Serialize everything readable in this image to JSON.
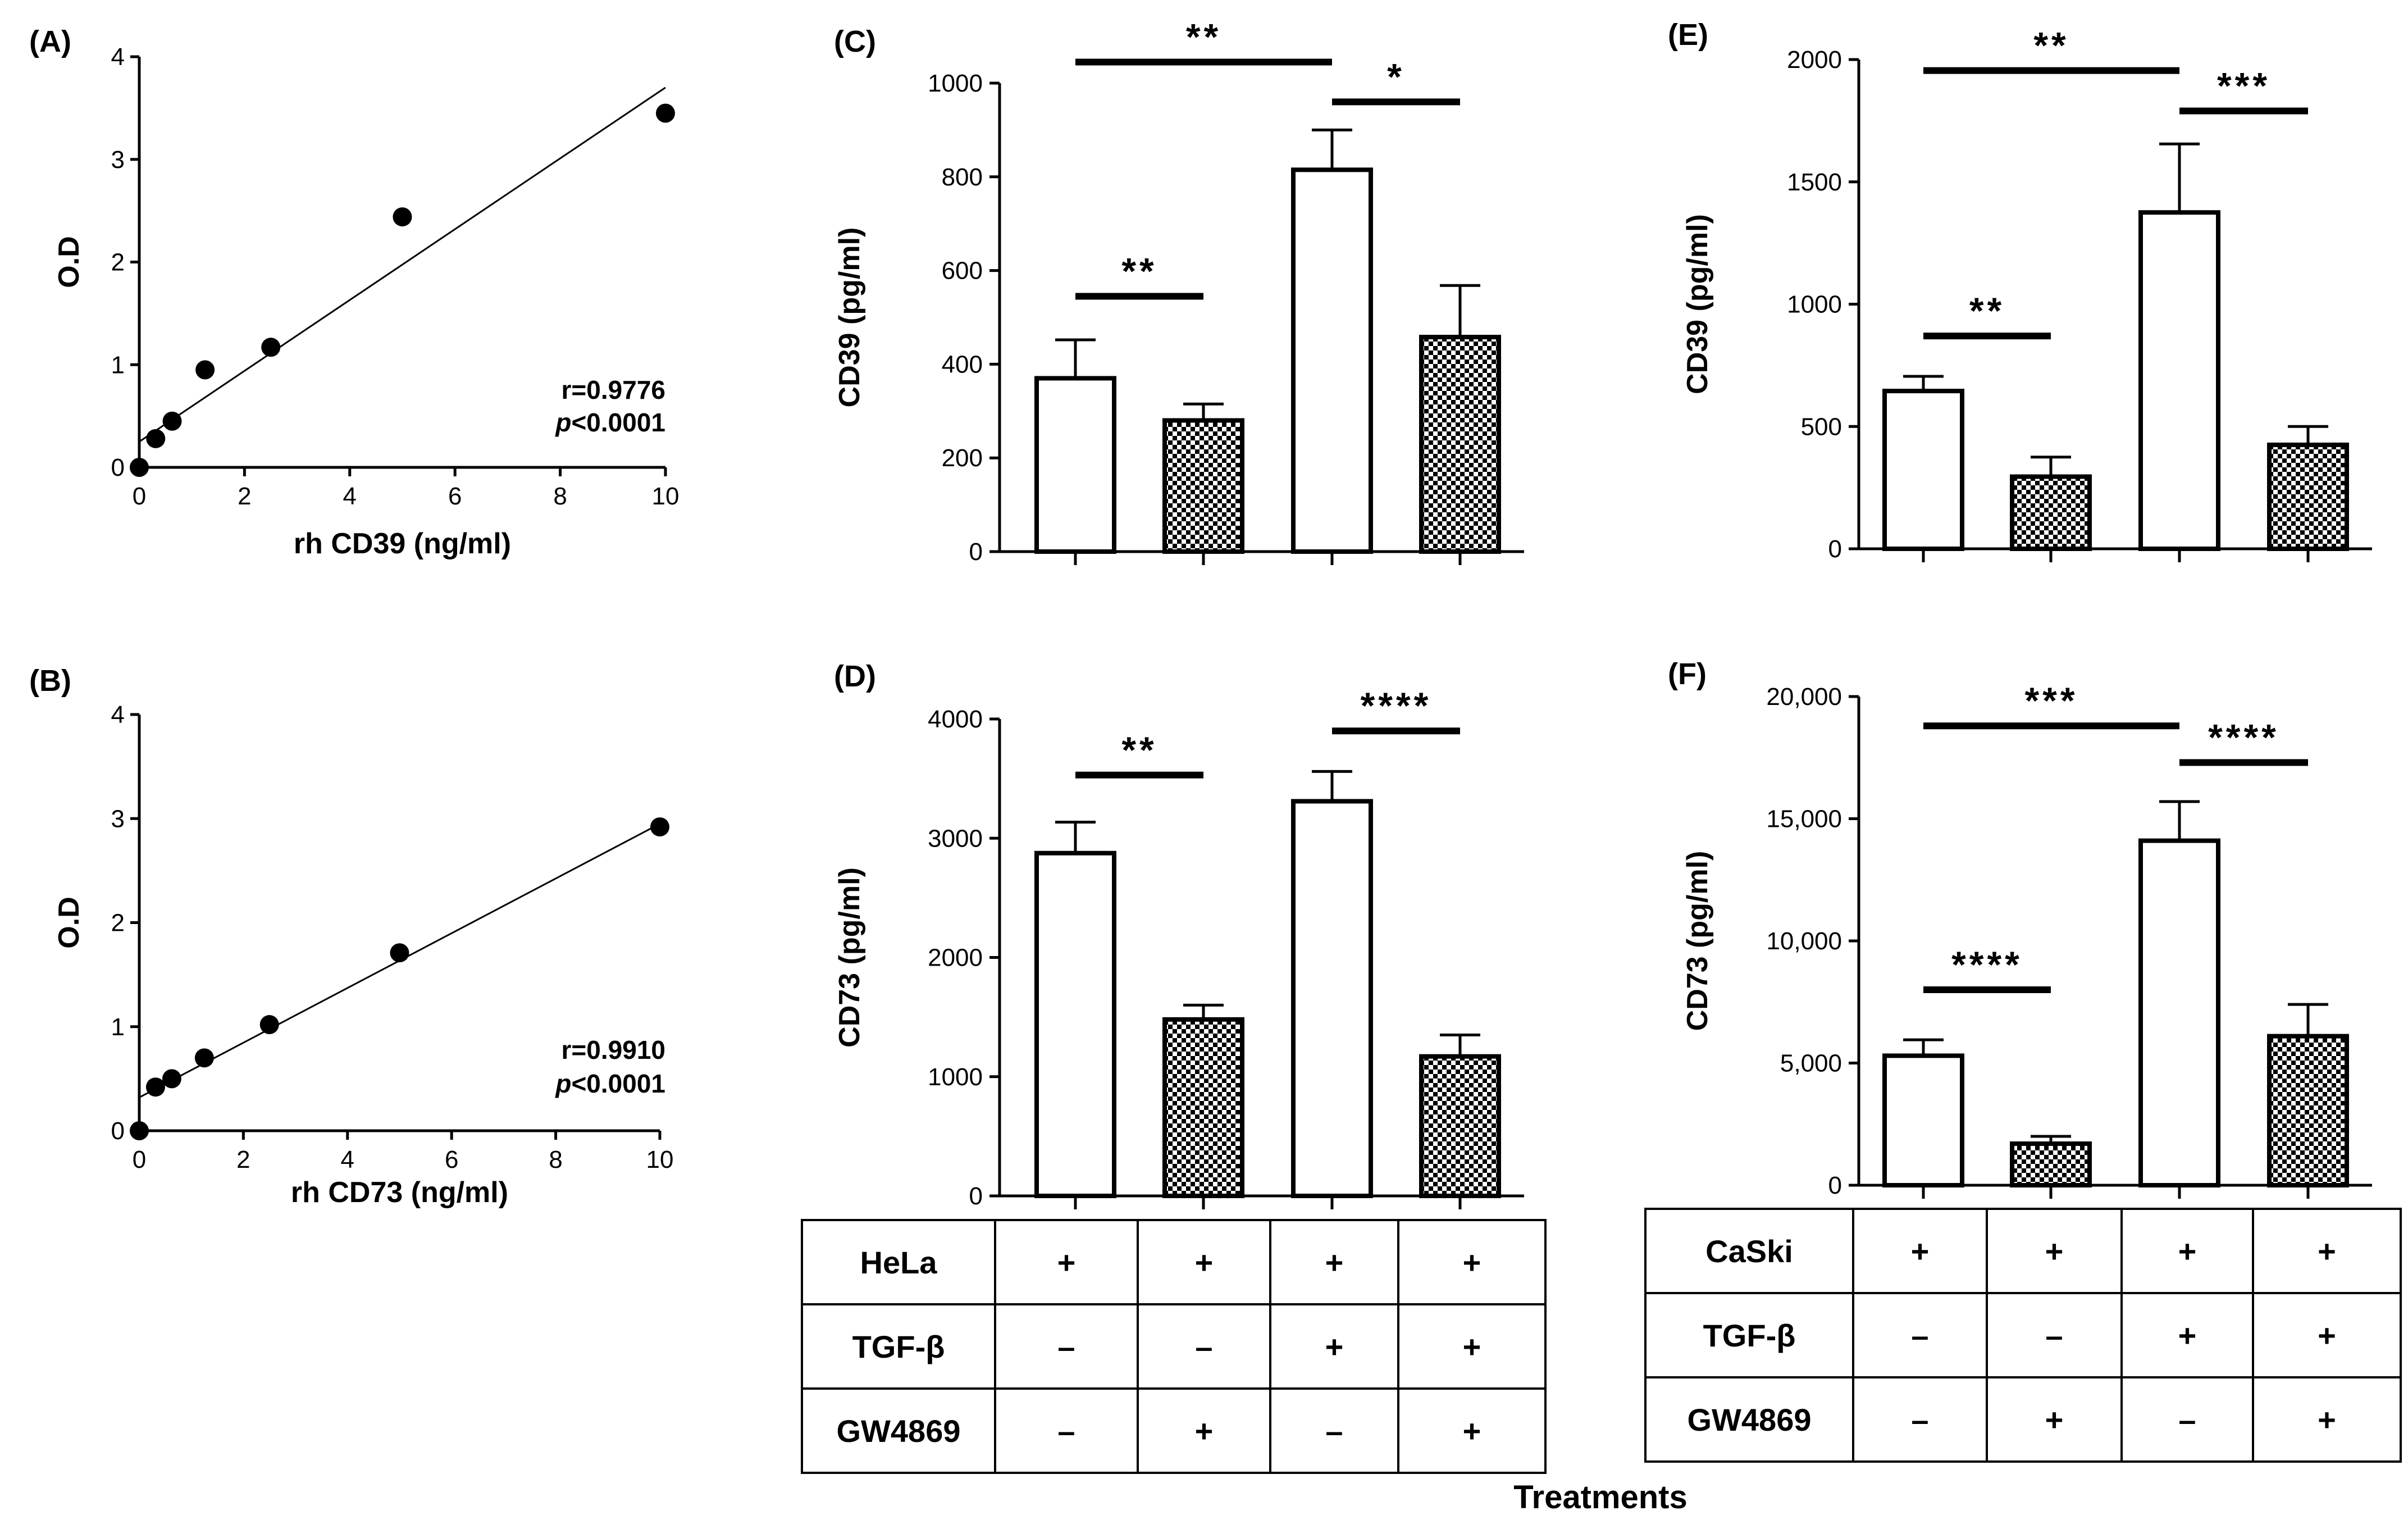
{
  "figure": {
    "xlabel_shared": "Treatments"
  },
  "chart_data": [
    {
      "id": "A",
      "type": "scatter",
      "label": "(A)",
      "xlabel": "rh CD39 (ng/ml)",
      "ylabel": "O.D",
      "xlim": [
        0,
        10
      ],
      "ylim": [
        0,
        4
      ],
      "xticks": [
        "0",
        "2",
        "4",
        "6",
        "8",
        "10"
      ],
      "yticks": [
        "0",
        "1",
        "2",
        "3",
        "4"
      ],
      "x": [
        0,
        0.3125,
        0.625,
        1.25,
        2.5,
        5,
        10
      ],
      "y": [
        0,
        0.28,
        0.45,
        0.95,
        1.17,
        2.44,
        3.45
      ],
      "fit_line": {
        "x": [
          0,
          10
        ],
        "y": [
          0.25,
          3.7
        ]
      },
      "stat_r": "r=0.9776",
      "stat_p_label": "p",
      "stat_p_rest": "<0.0001"
    },
    {
      "id": "B",
      "type": "scatter",
      "label": "(B)",
      "xlabel": "rh CD73 (ng/ml)",
      "ylabel": "O.D",
      "xlim": [
        0,
        10
      ],
      "ylim": [
        0,
        4
      ],
      "xticks": [
        "0",
        "2",
        "4",
        "6",
        "8",
        "10"
      ],
      "yticks": [
        "0",
        "1",
        "2",
        "3",
        "4"
      ],
      "x": [
        0,
        0.3125,
        0.625,
        1.25,
        2.5,
        5,
        10
      ],
      "y": [
        0,
        0.42,
        0.5,
        0.7,
        1.02,
        1.71,
        2.92
      ],
      "fit_line": {
        "x": [
          0,
          10
        ],
        "y": [
          0.32,
          2.95
        ]
      },
      "stat_r": "r=0.9910",
      "stat_p_label": "p",
      "stat_p_rest": "<0.0001"
    },
    {
      "id": "C",
      "type": "bar",
      "label": "(C)",
      "ylabel": "CD39 (pg/ml)",
      "ylim": [
        0,
        1000
      ],
      "yticks": [
        0,
        200,
        400,
        600,
        800,
        1000
      ],
      "ytick_labels": [
        "0",
        "200",
        "400",
        "600",
        "800",
        "1000"
      ],
      "values": [
        370,
        280,
        815,
        458
      ],
      "errors": [
        82,
        35,
        85,
        110
      ],
      "patterns": [
        "open",
        "checker",
        "open",
        "checker"
      ],
      "brackets": [
        {
          "from": 0,
          "to": 2,
          "y": 1045,
          "text": "**"
        },
        {
          "from": 2,
          "to": 3,
          "y": 960,
          "text": "*"
        },
        {
          "from": 0,
          "to": 1,
          "y": 545,
          "text": "**"
        }
      ]
    },
    {
      "id": "E",
      "type": "bar",
      "label": "(E)",
      "ylabel": "CD39 (pg/ml)",
      "ylim": [
        0,
        2000
      ],
      "yticks": [
        0,
        500,
        1000,
        1500,
        2000
      ],
      "ytick_labels": [
        "0",
        "500",
        "1000",
        "1500",
        "2000"
      ],
      "values": [
        645,
        295,
        1375,
        425
      ],
      "errors": [
        60,
        80,
        280,
        75
      ],
      "patterns": [
        "open",
        "checker",
        "open",
        "checker"
      ],
      "brackets": [
        {
          "from": 0,
          "to": 2,
          "y": 1955,
          "text": "**"
        },
        {
          "from": 2,
          "to": 3,
          "y": 1790,
          "text": "***"
        },
        {
          "from": 0,
          "to": 1,
          "y": 870,
          "text": "**"
        }
      ]
    },
    {
      "id": "D",
      "type": "bar",
      "label": "(D)",
      "ylabel": "CD73 (pg/ml)",
      "ylim": [
        0,
        4000
      ],
      "yticks": [
        0,
        1000,
        2000,
        3000,
        4000
      ],
      "ytick_labels": [
        "0",
        "1000",
        "2000",
        "3000",
        "4000"
      ],
      "values": [
        2875,
        1480,
        3310,
        1170
      ],
      "errors": [
        260,
        120,
        250,
        180
      ],
      "patterns": [
        "open",
        "checker",
        "open",
        "checker"
      ],
      "brackets": [
        {
          "from": 2,
          "to": 3,
          "y": 3900,
          "text": "****"
        },
        {
          "from": 0,
          "to": 1,
          "y": 3530,
          "text": "**"
        }
      ]
    },
    {
      "id": "F",
      "type": "bar",
      "label": "(F)",
      "ylabel": "CD73 (pg/ml)",
      "ylim": [
        0,
        20000
      ],
      "yticks": [
        0,
        5000,
        10000,
        15000,
        20000
      ],
      "ytick_labels": [
        "0",
        "5,000",
        "10,000",
        "15,000",
        "20,000"
      ],
      "values": [
        5300,
        1700,
        14100,
        6100
      ],
      "errors": [
        650,
        300,
        1600,
        1300
      ],
      "patterns": [
        "open",
        "checker",
        "open",
        "checker"
      ],
      "brackets": [
        {
          "from": 0,
          "to": 2,
          "y": 18800,
          "text": "***"
        },
        {
          "from": 2,
          "to": 3,
          "y": 17300,
          "text": "****"
        },
        {
          "from": 0,
          "to": 1,
          "y": 8000,
          "text": "****"
        }
      ]
    }
  ],
  "tables": [
    {
      "id": "hela",
      "rows": [
        {
          "label": "HeLa",
          "cells": [
            "+",
            "+",
            "+",
            "+"
          ]
        },
        {
          "label": "TGF-β",
          "cells": [
            "–",
            "–",
            "+",
            "+"
          ]
        },
        {
          "label": "GW4869",
          "cells": [
            "–",
            "+",
            "–",
            "+"
          ]
        }
      ]
    },
    {
      "id": "caski",
      "rows": [
        {
          "label": "CaSki",
          "cells": [
            "+",
            "+",
            "+",
            "+"
          ]
        },
        {
          "label": "TGF-β",
          "cells": [
            "–",
            "–",
            "+",
            "+"
          ]
        },
        {
          "label": "GW4869",
          "cells": [
            "–",
            "+",
            "–",
            "+"
          ]
        }
      ]
    }
  ]
}
